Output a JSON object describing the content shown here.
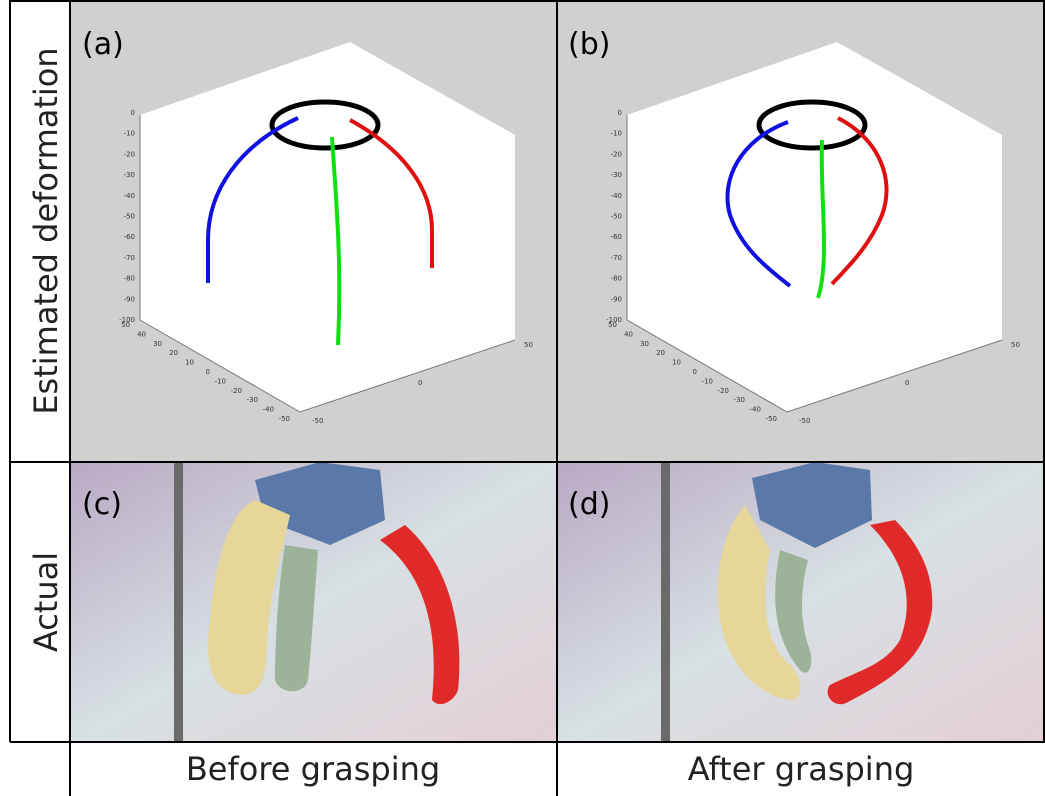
{
  "row_labels": [
    "Estimated deformation",
    "Actual"
  ],
  "column_labels": [
    "Before grasping",
    "After grasping"
  ],
  "panels": [
    "(a)",
    "(b)",
    "(c)",
    "(d)"
  ],
  "plot_axes": {
    "z_ticks": [
      "0",
      "-10",
      "-20",
      "-30",
      "-40",
      "-50",
      "-60",
      "-70",
      "-80",
      "-90",
      "-100"
    ],
    "y_ticks": [
      "50",
      "40",
      "30",
      "20",
      "10",
      "0",
      "-10",
      "-20",
      "-30",
      "-40",
      "-50"
    ],
    "x_ticks": [
      "-50",
      "0",
      "50"
    ]
  }
}
